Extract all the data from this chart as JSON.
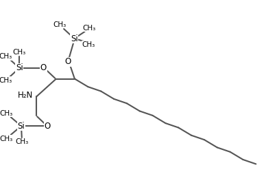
{
  "background": "#ffffff",
  "line_color": "#555555",
  "line_width": 1.5,
  "font_size": 8.5,
  "figsize": [
    3.88,
    2.82
  ],
  "dpi": 100,
  "xlim": [
    0,
    9.5
  ],
  "ylim": [
    0,
    7.0
  ]
}
